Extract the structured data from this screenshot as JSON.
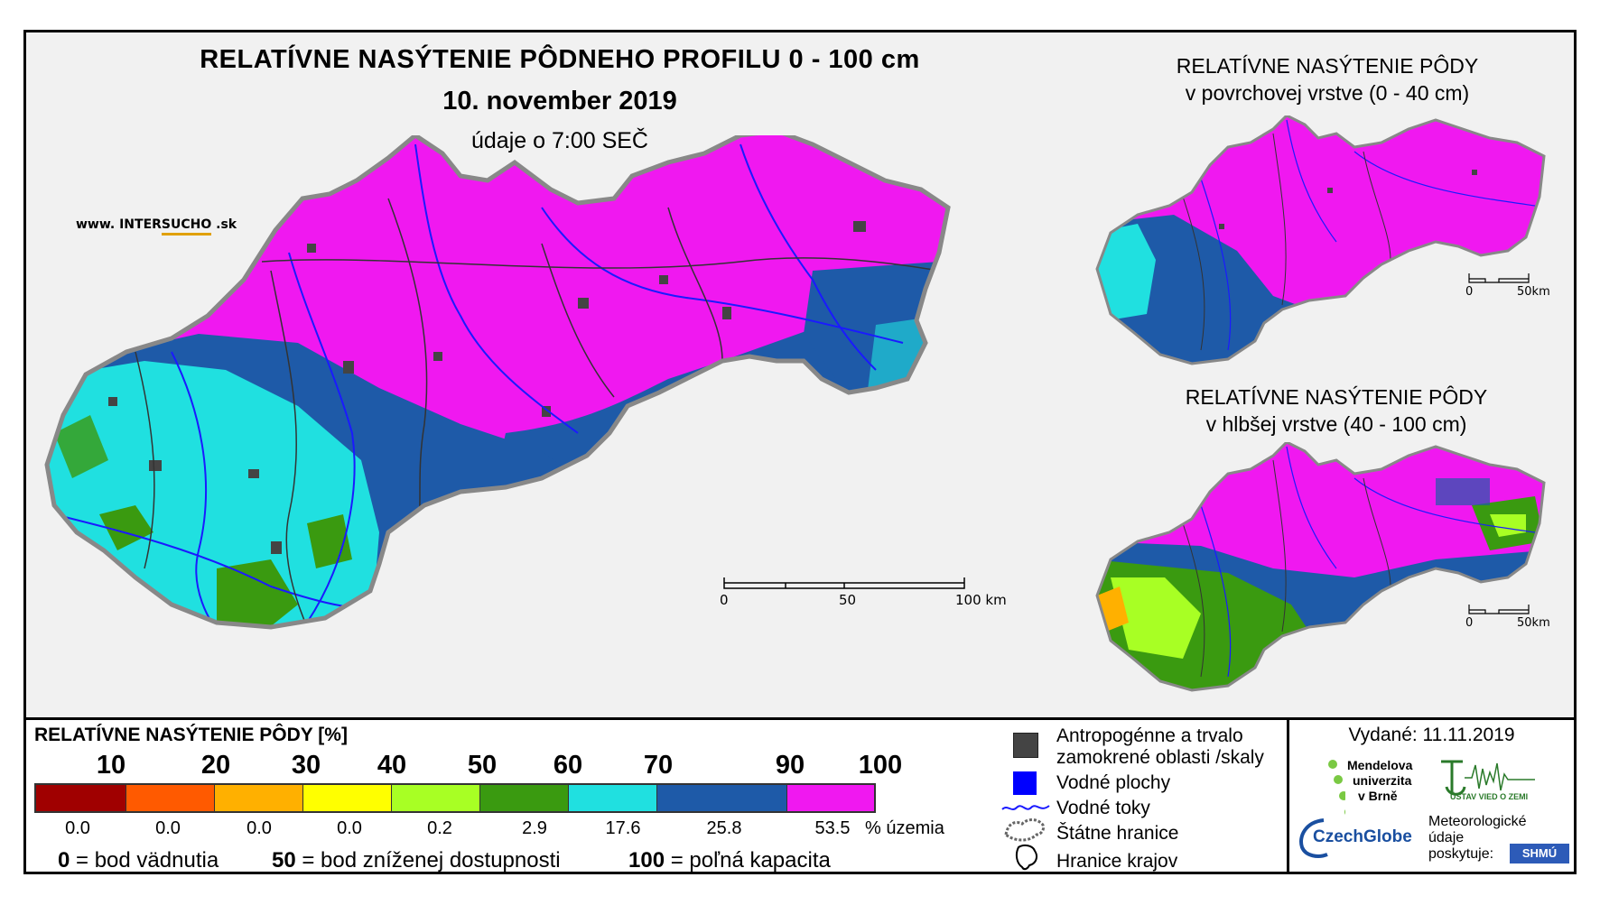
{
  "header": {
    "title": "RELATÍVNE NASÝTENIE PÔDNEHO PROFILU 0 - 100 cm",
    "date": "10. november 2019",
    "time": "údaje o 7:00 SEČ",
    "website_prefix": "www. INTER",
    "website_highlight": "SUCHO",
    "website_suffix": " .sk"
  },
  "inset_top": {
    "title_line1": "RELATÍVNE NASÝTENIE PÔDY",
    "title_line2": "v povrchovej vrstve (0 - 40 cm)",
    "scale_start": "0",
    "scale_end": "50km"
  },
  "inset_bottom": {
    "title_line1": "RELATÍVNE NASÝTENIE PÔDY",
    "title_line2": "v hlbšej vrstve (40 - 100 cm)",
    "scale_start": "0",
    "scale_end": "50km"
  },
  "main_scale": {
    "labels": [
      "0",
      "50",
      "100 km"
    ]
  },
  "legend": {
    "title": "RELATÍVNE NASÝTENIE PÔDY [%]",
    "ticks": [
      "10",
      "20",
      "30",
      "40",
      "50",
      "60",
      "70",
      "90",
      "100"
    ],
    "classes": [
      {
        "color": "#a00000",
        "percent": "0.0"
      },
      {
        "color": "#ff5a00",
        "percent": "0.0"
      },
      {
        "color": "#ffb000",
        "percent": "0.0"
      },
      {
        "color": "#ffff00",
        "percent": "0.0"
      },
      {
        "color": "#a8ff24",
        "percent": "0.2"
      },
      {
        "color": "#3a9a10",
        "percent": "2.9"
      },
      {
        "color": "#20e0e0",
        "percent": "17.6"
      },
      {
        "color": "#1e5aa8",
        "percent": "25.8"
      },
      {
        "color": "#f018f0",
        "percent": "53.5"
      }
    ],
    "percent_unit": "% územia",
    "def_0_num": "0",
    "def_0_text": " = bod vädnutia",
    "def_50_num": "50",
    "def_50_text": " = bod zníženej dostupnosti",
    "def_100_num": "100",
    "def_100_text": " = poľná kapacita"
  },
  "symbols": {
    "anthropogenic_line1": "Antropogénne a trvalo",
    "anthropogenic_line2": "zamokrené oblasti /skaly",
    "water_bodies": "Vodné plochy",
    "water_streams": "Vodné toky",
    "state_border": "Štátne hranice",
    "region_border": "Hranice krajov"
  },
  "credits": {
    "issued": "Vydané: 11.11.2019",
    "mendel_line1": "Mendelova",
    "mendel_line2": "univerzita",
    "mendel_line3": "v Brně",
    "ustav": "ÚSTAV VIED O ZEMI",
    "czechglobe": "CzechGlobe",
    "met_line1": "Meteorologické",
    "met_line2": "údaje",
    "met_line3": "poskytuje:",
    "shmu": "SHMÚ"
  },
  "map_colors": {
    "magenta": "#f018f0",
    "dark_blue": "#1e5aa8",
    "cyan": "#20e0e0",
    "green": "#3a9a10",
    "light_green": "#a8ff24",
    "anthropogenic": "#444444",
    "water": "#0000ff"
  }
}
